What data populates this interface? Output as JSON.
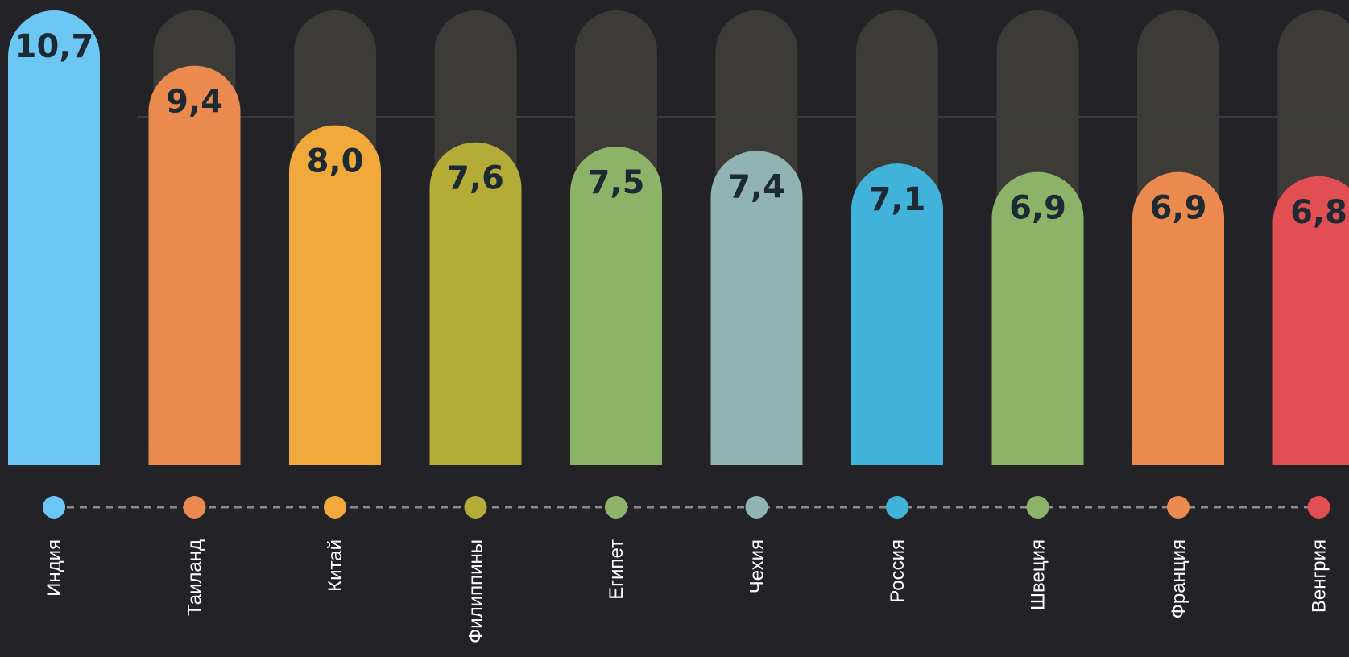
{
  "chart_data": {
    "type": "bar",
    "categories": [
      "Индия",
      "Таиланд",
      "Китай",
      "Филиппины",
      "Египет",
      "Чехия",
      "Россия",
      "Швеция",
      "Франция",
      "Венгрия"
    ],
    "values": [
      10.7,
      9.4,
      8.0,
      7.6,
      7.5,
      7.4,
      7.1,
      6.9,
      6.9,
      6.8
    ],
    "value_labels": [
      "10,7",
      "9,4",
      "8,0",
      "7,6",
      "7,5",
      "7,4",
      "7,1",
      "6,9",
      "6,9",
      "6,8"
    ],
    "colors": [
      "#6cc7f4",
      "#ea8a4e",
      "#f2a93b",
      "#b5ac38",
      "#8db369",
      "#92b3b3",
      "#41b2d9",
      "#8db369",
      "#ea8a4e",
      "#e14f52"
    ],
    "ylim": [
      0,
      10.7
    ],
    "title": "",
    "xlabel": "",
    "ylabel": "",
    "grid": false,
    "legend": "none"
  }
}
